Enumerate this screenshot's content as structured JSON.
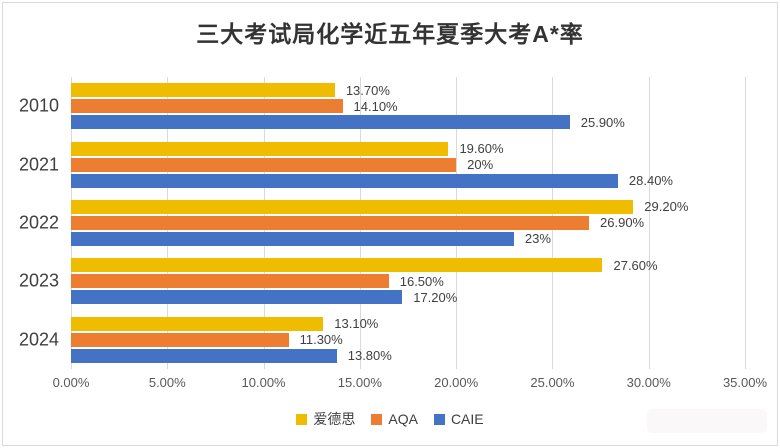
{
  "chart_data": {
    "type": "bar",
    "orientation": "horizontal",
    "title": "三大考试局化学近五年夏季大考A*率",
    "categories": [
      "2010",
      "2021",
      "2022",
      "2023",
      "2024"
    ],
    "series": [
      {
        "name": "爱德思",
        "color": "#F0BC00",
        "values": [
          13.7,
          19.6,
          29.2,
          27.6,
          13.1
        ],
        "labels": [
          "13.70%",
          "19.60%",
          "29.20%",
          "27.60%",
          "13.10%"
        ]
      },
      {
        "name": "AQA",
        "color": "#ED7D31",
        "values": [
          14.1,
          20,
          26.9,
          16.5,
          11.3
        ],
        "labels": [
          "14.10%",
          "20%",
          "26.90%",
          "16.50%",
          "11.30%"
        ]
      },
      {
        "name": "CAIE",
        "color": "#4472C4",
        "values": [
          25.9,
          28.4,
          23,
          17.2,
          13.8
        ],
        "labels": [
          "25.90%",
          "28.40%",
          "23%",
          "17.20%",
          "13.80%"
        ]
      }
    ],
    "x_axis": {
      "min": 0,
      "max": 35,
      "tick_step": 5,
      "tick_labels": [
        "0.00%",
        "5.00%",
        "10.00%",
        "15.00%",
        "20.00%",
        "25.00%",
        "30.00%",
        "35.00%"
      ]
    },
    "legend": {
      "position": "bottom",
      "entries": [
        "爱德思",
        "AQA",
        "CAIE"
      ]
    },
    "grid": "vertical-only",
    "data_labels": "outside-end"
  },
  "colors": {
    "gridline": "#D9D9D9",
    "frame_border": "#D9D9D9",
    "title_text": "#333333",
    "axis_text": "#595959",
    "data_label_text": "#404040"
  }
}
